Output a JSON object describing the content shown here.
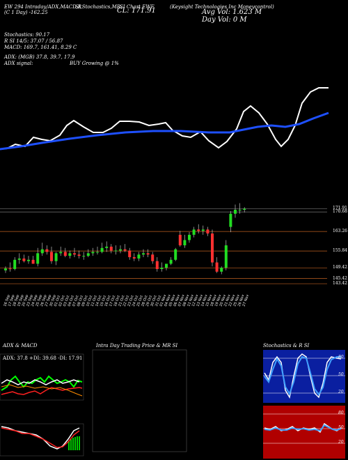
{
  "header": {
    "line1_left": "EW 294 Intraday/ADX,MACD,R",
    "line1_mid": "SI,Stochastics,MR",
    "line1_right": "SI Chart EWF",
    "line2_left": "(C 1 Day) -162.25",
    "line2_close": "CL: 171.91",
    "company": "(Keysight Technologies Inc Moneycontrol)",
    "volume": "Avg Vol: 1.623 M",
    "dayvol": "Day Vol: 0   M",
    "stoch": "Stochastics: 90.17",
    "rsi": "R          SI 14/5: 37.07 / 56.87",
    "macd": "MACD: 169.7,  161.41, 8.29 C",
    "adx": "ADX:                  (MGB) 37.8,  39.7,  17.9",
    "adx_signal": "ADX  signal:",
    "signal": "BUY Growing @ 1%"
  },
  "panels": {
    "adx_title": "ADX  & MACD",
    "intraday_title": "Intra  Day Trading Price  & MR          SI",
    "stoch_title": "Stochastics & R          SI",
    "adx_readout": "ADX: 37.8  +DI: 39.68  -DI: 17.91"
  },
  "price_levels": {
    "labels": [
      "171.91",
      "170.68",
      "163.26",
      "155.84",
      "149.42",
      "145.42",
      "143.42"
    ],
    "values": [
      171.91,
      170.68,
      163.26,
      155.84,
      149.42,
      145.42,
      143.42
    ]
  },
  "stoch_ticks": [
    "80",
    "50",
    "20"
  ],
  "rsi_ticks": [
    "80",
    "50",
    "20"
  ],
  "chart_data": {
    "type": "candlestick",
    "x": [
      "16 Sep",
      "17 Sep",
      "18 Sep",
      "19 Sep",
      "20 Sep",
      "23 Sep",
      "24 Sep",
      "25 Sep",
      "26 Sep",
      "27 Sep",
      "30 Sep",
      "01 Oct",
      "02 Oct",
      "03 Oct",
      "04 Oct",
      "07 Oct",
      "08 Oct",
      "09 Oct",
      "10 Oct",
      "11 Oct",
      "14 Oct",
      "15 Oct",
      "16 Oct",
      "17 Oct",
      "18 Oct",
      "21 Oct",
      "22 Oct",
      "23 Oct",
      "24 Oct",
      "25 Oct",
      "28 Oct",
      "29 Oct",
      "30 Oct",
      "31 Oct",
      "01 Nov",
      "04 Nov",
      "05 Nov",
      "06 Nov",
      "07 Nov",
      "08 Nov",
      "11 Nov",
      "12 Nov",
      "13 Nov",
      "14 Nov",
      "15 Nov",
      "18 Nov",
      "19 Nov",
      "20 Nov",
      "21 Nov",
      "22 Nov",
      "25 Nov",
      "26 Nov",
      "27 Nov"
    ],
    "open": [
      148.5,
      149.2,
      149.0,
      152.5,
      153.0,
      152.0,
      152.5,
      151.0,
      155.0,
      156.5,
      155.5,
      152.0,
      155.0,
      155.5,
      154.0,
      155.0,
      154.5,
      154.0,
      154.0,
      155.0,
      155.5,
      155.5,
      157.0,
      157.5,
      156.0,
      156.0,
      156.5,
      156.0,
      153.5,
      153.0,
      154.5,
      155.0,
      154.5,
      152.0,
      149.0,
      149.5,
      151.0,
      152.5,
      162.0,
      158.0,
      160.0,
      162.0,
      164.0,
      163.5,
      164.0,
      162.5,
      151.5,
      148.0,
      149.5,
      165.0,
      170.0,
      171.5,
      171.5
    ],
    "high": [
      150.0,
      151.5,
      153.5,
      155.0,
      154.5,
      154.0,
      154.0,
      157.0,
      159.0,
      158.0,
      157.5,
      155.5,
      157.5,
      157.0,
      156.0,
      157.0,
      156.0,
      155.5,
      156.5,
      157.0,
      157.5,
      159.0,
      159.5,
      158.5,
      158.0,
      158.0,
      158.5,
      157.0,
      155.0,
      155.5,
      156.5,
      156.5,
      155.5,
      153.5,
      151.5,
      151.0,
      153.5,
      157.0,
      163.5,
      162.0,
      163.0,
      165.0,
      166.0,
      165.5,
      165.0,
      164.0,
      153.5,
      150.0,
      160.0,
      171.0,
      173.5,
      174.0,
      172.5
    ],
    "low": [
      147.5,
      148.0,
      148.5,
      151.0,
      151.5,
      151.0,
      151.0,
      150.0,
      154.0,
      154.5,
      151.0,
      150.5,
      154.0,
      153.5,
      153.0,
      153.5,
      153.0,
      152.5,
      153.5,
      154.0,
      154.5,
      155.0,
      155.5,
      155.0,
      154.5,
      155.0,
      155.5,
      152.5,
      152.0,
      152.0,
      153.5,
      153.5,
      151.0,
      148.0,
      148.0,
      148.5,
      150.5,
      152.0,
      157.5,
      157.0,
      159.0,
      161.0,
      162.5,
      162.0,
      161.5,
      150.0,
      147.5,
      147.0,
      148.5,
      163.0,
      168.5,
      170.0,
      170.5
    ],
    "close": [
      149.2,
      149.0,
      152.5,
      153.0,
      152.0,
      152.5,
      151.0,
      155.0,
      156.5,
      155.5,
      152.0,
      155.0,
      155.5,
      154.0,
      155.0,
      154.5,
      154.0,
      154.0,
      155.0,
      155.5,
      155.5,
      157.0,
      157.5,
      156.0,
      156.0,
      156.5,
      156.0,
      153.5,
      153.0,
      154.5,
      155.0,
      154.5,
      152.0,
      149.0,
      149.5,
      151.0,
      152.5,
      156.5,
      158.0,
      160.0,
      162.0,
      164.0,
      163.5,
      164.0,
      162.5,
      151.5,
      148.0,
      149.5,
      158.0,
      170.0,
      171.5,
      171.5,
      171.9
    ]
  }
}
